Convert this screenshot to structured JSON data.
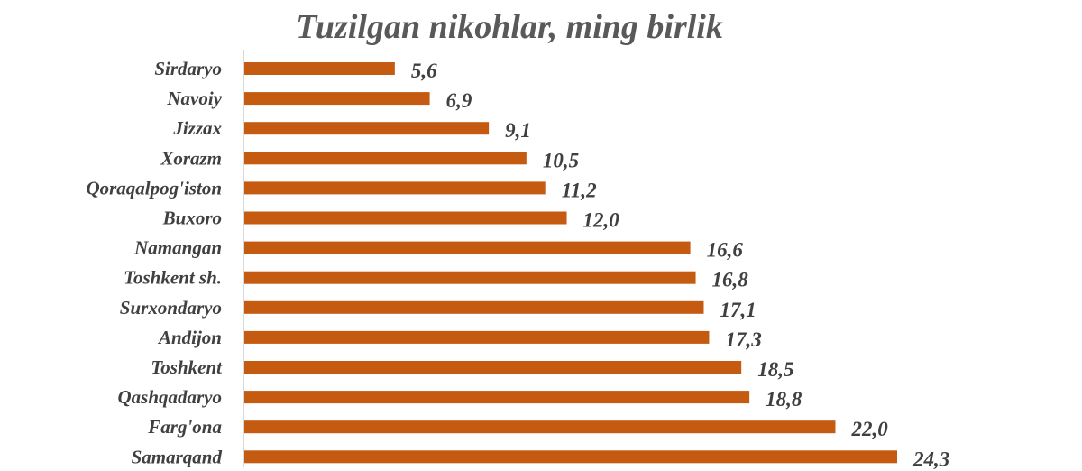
{
  "chart_data": {
    "type": "bar",
    "orientation": "horizontal",
    "title": "Tuzilgan nikohlar, ming birlik",
    "categories": [
      "Sirdaryo",
      "Navoiy",
      "Jizzax",
      "Xorazm",
      "Qoraqalpog'iston",
      "Buxoro",
      "Namangan",
      "Toshkent sh.",
      "Surxondaryo",
      "Andijon",
      "Toshkent",
      "Qashqadaryo",
      "Farg'ona",
      "Samarqand"
    ],
    "values": [
      5.6,
      6.9,
      9.1,
      10.5,
      11.2,
      12.0,
      16.6,
      16.8,
      17.1,
      17.3,
      18.5,
      18.8,
      22.0,
      24.3
    ],
    "value_labels": [
      "5,6",
      "6,9",
      "9,1",
      "10,5",
      "11,2",
      "12,0",
      "16,6",
      "16,8",
      "17,1",
      "17,3",
      "18,5",
      "18,8",
      "22,0",
      "24,3"
    ],
    "xlim": [
      0,
      24.3
    ],
    "grid": false,
    "legend": "none",
    "bar_color": "#C55A11"
  }
}
